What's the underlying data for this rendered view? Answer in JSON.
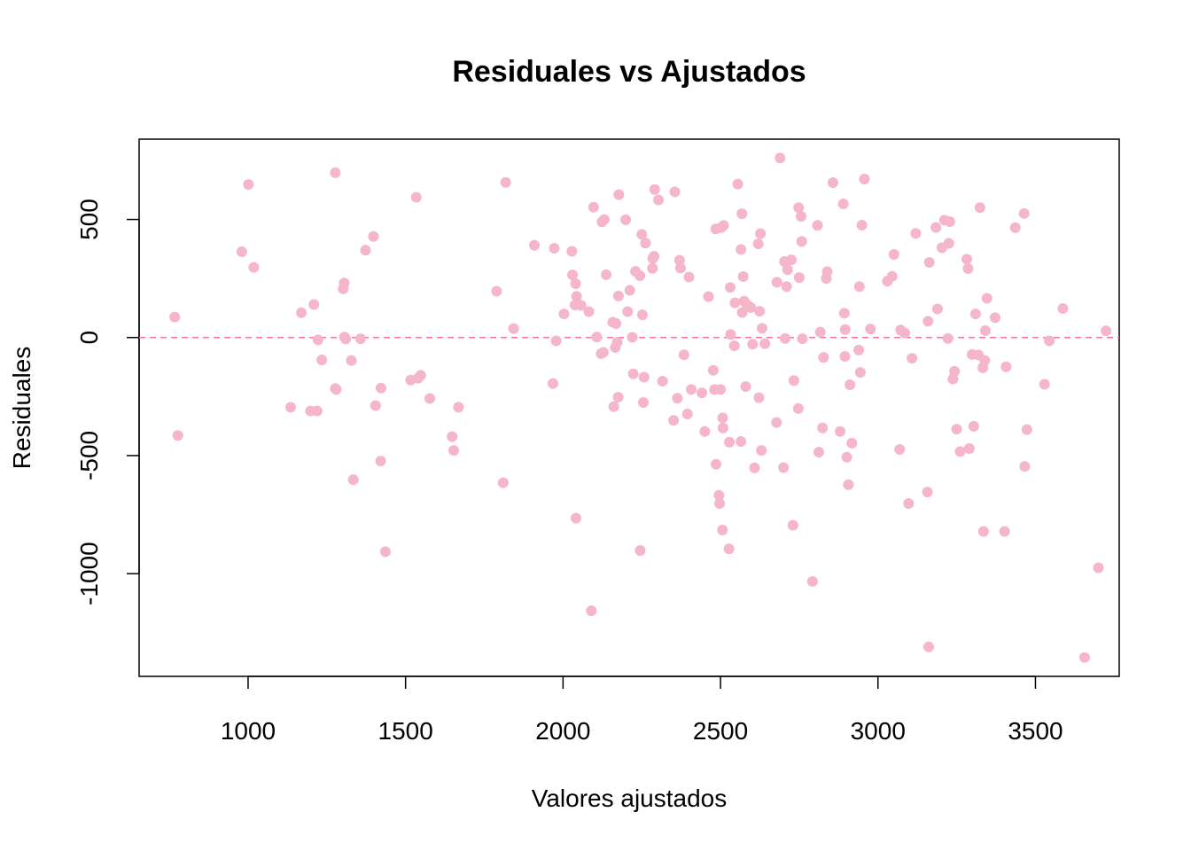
{
  "chart_data": {
    "type": "scatter",
    "title": "Residuales vs Ajustados",
    "xlabel": "Valores ajustados",
    "ylabel": "Residuales",
    "xlim": [
      654,
      3766
    ],
    "ylim": [
      -1435,
      840
    ],
    "xticks": [
      1000,
      1500,
      2000,
      2500,
      3000,
      3500
    ],
    "yticks": [
      -1000,
      -500,
      0,
      500
    ],
    "xtick_labels": [
      "1000",
      "1500",
      "2000",
      "2500",
      "3000",
      "3500"
    ],
    "ytick_labels": [
      "-1000",
      "-500",
      "0",
      "500"
    ],
    "reference_line": {
      "y": 0,
      "style": "dashed",
      "color": "#ff6f9c"
    },
    "point_color": "#f4b6c8",
    "grid": false,
    "points": [
      [
        767,
        87
      ],
      [
        777,
        -415
      ],
      [
        980,
        363
      ],
      [
        1001,
        648
      ],
      [
        1018,
        297
      ],
      [
        1135,
        -295
      ],
      [
        1169,
        105
      ],
      [
        1198,
        -311
      ],
      [
        1209,
        140
      ],
      [
        1219,
        -311
      ],
      [
        1222,
        -10
      ],
      [
        1234,
        -95
      ],
      [
        1277,
        698
      ],
      [
        1277,
        -216
      ],
      [
        1280,
        -220
      ],
      [
        1302,
        206
      ],
      [
        1305,
        231
      ],
      [
        1306,
        2
      ],
      [
        1310,
        -6
      ],
      [
        1328,
        -97
      ],
      [
        1334,
        -602
      ],
      [
        1357,
        -5
      ],
      [
        1373,
        370
      ],
      [
        1398,
        428
      ],
      [
        1405,
        -288
      ],
      [
        1421,
        -523
      ],
      [
        1422,
        -214
      ],
      [
        1436,
        -907
      ],
      [
        1516,
        -180
      ],
      [
        1534,
        594
      ],
      [
        1540,
        -172
      ],
      [
        1548,
        -160
      ],
      [
        1577,
        -258
      ],
      [
        1648,
        -420
      ],
      [
        1653,
        -478
      ],
      [
        1668,
        -295
      ],
      [
        1789,
        196
      ],
      [
        1810,
        -615
      ],
      [
        1818,
        657
      ],
      [
        1843,
        38
      ],
      [
        1909,
        391
      ],
      [
        1968,
        -195
      ],
      [
        1972,
        378
      ],
      [
        1978,
        -14
      ],
      [
        2003,
        100
      ],
      [
        2028,
        365
      ],
      [
        2030,
        265
      ],
      [
        2038,
        138
      ],
      [
        2040,
        228
      ],
      [
        2041,
        -765
      ],
      [
        2043,
        174
      ],
      [
        2057,
        136
      ],
      [
        2082,
        110
      ],
      [
        2090,
        -1157
      ],
      [
        2097,
        552
      ],
      [
        2107,
        2
      ],
      [
        2121,
        -68
      ],
      [
        2124,
        490
      ],
      [
        2128,
        -63
      ],
      [
        2131,
        500
      ],
      [
        2137,
        266
      ],
      [
        2158,
        65
      ],
      [
        2161,
        -293
      ],
      [
        2166,
        -42
      ],
      [
        2168,
        59
      ],
      [
        2172,
        -20
      ],
      [
        2175,
        -253
      ],
      [
        2176,
        176
      ],
      [
        2177,
        605
      ],
      [
        2199,
        499
      ],
      [
        2205,
        110
      ],
      [
        2212,
        200
      ],
      [
        2220,
        1
      ],
      [
        2223,
        -154
      ],
      [
        2230,
        280
      ],
      [
        2244,
        262
      ],
      [
        2245,
        -902
      ],
      [
        2250,
        437
      ],
      [
        2252,
        96
      ],
      [
        2255,
        -275
      ],
      [
        2257,
        -168
      ],
      [
        2262,
        400
      ],
      [
        2284,
        293
      ],
      [
        2285,
        335
      ],
      [
        2289,
        344
      ],
      [
        2291,
        627
      ],
      [
        2303,
        583
      ],
      [
        2316,
        -185
      ],
      [
        2351,
        -351
      ],
      [
        2355,
        617
      ],
      [
        2363,
        -257
      ],
      [
        2370,
        327
      ],
      [
        2373,
        294
      ],
      [
        2384,
        -73
      ],
      [
        2395,
        -324
      ],
      [
        2400,
        256
      ],
      [
        2407,
        -220
      ],
      [
        2441,
        -234
      ],
      [
        2450,
        -398
      ],
      [
        2462,
        173
      ],
      [
        2477,
        -139
      ],
      [
        2481,
        -220
      ],
      [
        2485,
        460
      ],
      [
        2486,
        -537
      ],
      [
        2495,
        -668
      ],
      [
        2497,
        -703
      ],
      [
        2500,
        -220
      ],
      [
        2503,
        466
      ],
      [
        2506,
        -815
      ],
      [
        2507,
        -340
      ],
      [
        2508,
        -383
      ],
      [
        2510,
        475
      ],
      [
        2527,
        -895
      ],
      [
        2528,
        -443
      ],
      [
        2531,
        212
      ],
      [
        2532,
        13
      ],
      [
        2544,
        -35
      ],
      [
        2546,
        147
      ],
      [
        2555,
        650
      ],
      [
        2565,
        -440
      ],
      [
        2565,
        373
      ],
      [
        2568,
        524
      ],
      [
        2569,
        106
      ],
      [
        2572,
        258
      ],
      [
        2575,
        154
      ],
      [
        2580,
        -208
      ],
      [
        2585,
        138
      ],
      [
        2596,
        127
      ],
      [
        2602,
        -28
      ],
      [
        2608,
        -552
      ],
      [
        2620,
        397
      ],
      [
        2622,
        -255
      ],
      [
        2624,
        111
      ],
      [
        2627,
        440
      ],
      [
        2630,
        -478
      ],
      [
        2632,
        39
      ],
      [
        2641,
        -26
      ],
      [
        2678,
        -360
      ],
      [
        2679,
        234
      ],
      [
        2689,
        760
      ],
      [
        2700,
        -551
      ],
      [
        2703,
        322
      ],
      [
        2705,
        -4
      ],
      [
        2710,
        216
      ],
      [
        2713,
        287
      ],
      [
        2725,
        329
      ],
      [
        2730,
        -795
      ],
      [
        2733,
        -182
      ],
      [
        2747,
        -301
      ],
      [
        2748,
        550
      ],
      [
        2750,
        254
      ],
      [
        2756,
        513
      ],
      [
        2758,
        407
      ],
      [
        2760,
        -5
      ],
      [
        2792,
        -1033
      ],
      [
        2808,
        475
      ],
      [
        2812,
        -485
      ],
      [
        2817,
        23
      ],
      [
        2824,
        -383
      ],
      [
        2827,
        -84
      ],
      [
        2836,
        250
      ],
      [
        2839,
        279
      ],
      [
        2857,
        656
      ],
      [
        2880,
        -398
      ],
      [
        2890,
        566
      ],
      [
        2893,
        103
      ],
      [
        2895,
        -80
      ],
      [
        2896,
        34
      ],
      [
        2901,
        -507
      ],
      [
        2906,
        -623
      ],
      [
        2911,
        -200
      ],
      [
        2917,
        -447
      ],
      [
        2939,
        -53
      ],
      [
        2941,
        216
      ],
      [
        2944,
        -148
      ],
      [
        2949,
        476
      ],
      [
        2957,
        671
      ],
      [
        2976,
        36
      ],
      [
        3030,
        239
      ],
      [
        3045,
        259
      ],
      [
        3051,
        352
      ],
      [
        3069,
        -474
      ],
      [
        3072,
        32
      ],
      [
        3085,
        19
      ],
      [
        3097,
        -703
      ],
      [
        3108,
        -88
      ],
      [
        3120,
        441
      ],
      [
        3157,
        -654
      ],
      [
        3159,
        69
      ],
      [
        3161,
        -1310
      ],
      [
        3163,
        318
      ],
      [
        3184,
        466
      ],
      [
        3189,
        121
      ],
      [
        3203,
        380
      ],
      [
        3211,
        497
      ],
      [
        3222,
        -4
      ],
      [
        3225,
        399
      ],
      [
        3228,
        491
      ],
      [
        3238,
        -176
      ],
      [
        3243,
        -143
      ],
      [
        3250,
        -388
      ],
      [
        3261,
        -483
      ],
      [
        3282,
        332
      ],
      [
        3286,
        292
      ],
      [
        3290,
        -470
      ],
      [
        3299,
        -72
      ],
      [
        3304,
        -376
      ],
      [
        3310,
        100
      ],
      [
        3319,
        -74
      ],
      [
        3324,
        550
      ],
      [
        3333,
        -128
      ],
      [
        3335,
        -821
      ],
      [
        3339,
        -97
      ],
      [
        3341,
        29
      ],
      [
        3346,
        166
      ],
      [
        3372,
        84
      ],
      [
        3402,
        -821
      ],
      [
        3407,
        -124
      ],
      [
        3436,
        465
      ],
      [
        3464,
        525
      ],
      [
        3466,
        -546
      ],
      [
        3473,
        -390
      ],
      [
        3529,
        -198
      ],
      [
        3544,
        -14
      ],
      [
        3587,
        123
      ],
      [
        3656,
        -1355
      ],
      [
        3700,
        -975
      ],
      [
        3724,
        28
      ]
    ]
  }
}
